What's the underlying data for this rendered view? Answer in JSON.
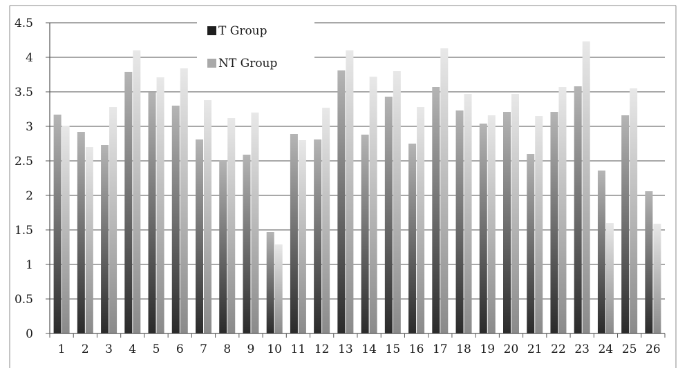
{
  "chart_data": {
    "type": "bar",
    "categories": [
      "1",
      "2",
      "3",
      "4",
      "5",
      "6",
      "7",
      "8",
      "9",
      "10",
      "11",
      "12",
      "13",
      "14",
      "15",
      "16",
      "17",
      "18",
      "19",
      "20",
      "21",
      "22",
      "23",
      "24",
      "25",
      "26"
    ],
    "series": [
      {
        "name": "T Group",
        "values": [
          3.17,
          2.92,
          2.73,
          3.79,
          3.49,
          3.3,
          2.81,
          2.51,
          2.59,
          1.47,
          2.89,
          2.81,
          3.81,
          2.88,
          3.43,
          2.75,
          3.57,
          3.23,
          3.04,
          3.21,
          2.6,
          3.21,
          3.58,
          2.36,
          3.16,
          2.06
        ],
        "color": "#333333"
      },
      {
        "name": "NT Group",
        "values": [
          3.01,
          2.7,
          3.28,
          4.1,
          3.71,
          3.84,
          3.38,
          3.12,
          3.2,
          1.29,
          2.8,
          3.27,
          4.1,
          3.72,
          3.8,
          3.28,
          4.13,
          3.47,
          3.16,
          3.47,
          3.15,
          3.57,
          4.23,
          1.6,
          3.55,
          1.59
        ],
        "color": "#a9a9a9"
      }
    ],
    "y_ticks": [
      "0",
      "0.5",
      "1",
      "1.5",
      "2",
      "2.5",
      "3",
      "3.5",
      "4",
      "4.5"
    ],
    "ylim": [
      0,
      4.5
    ],
    "grid": true,
    "legend_position": "top-left"
  }
}
